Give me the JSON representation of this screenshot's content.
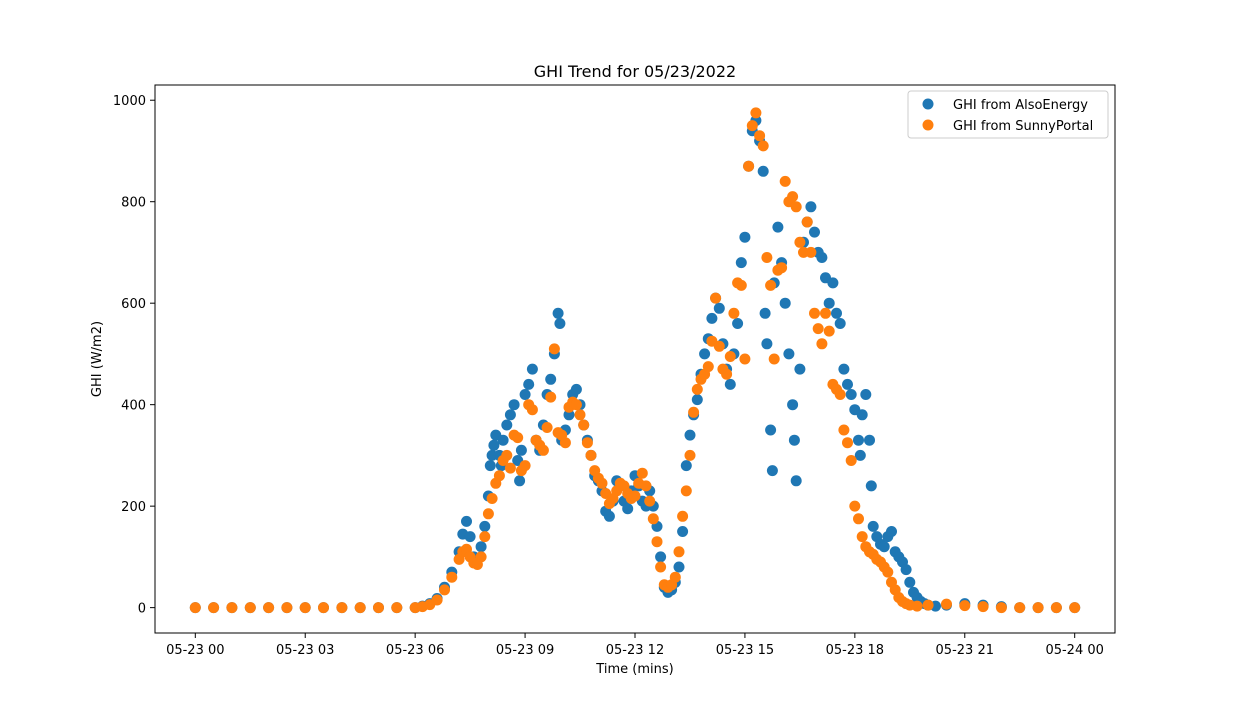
{
  "chart_data": {
    "type": "scatter",
    "title": "GHI Trend for 05/23/2022",
    "xlabel": "Time (mins)",
    "ylabel": "GHI (W/m2)",
    "x_unit": "hour of day",
    "xlim": [
      -1.1,
      25.1
    ],
    "ylim": [
      -50,
      1030
    ],
    "x_ticks": [
      0,
      3,
      6,
      9,
      12,
      15,
      18,
      21,
      24
    ],
    "x_tick_labels": [
      "05-23 00",
      "05-23 03",
      "05-23 06",
      "05-23 09",
      "05-23 12",
      "05-23 15",
      "05-23 18",
      "05-23 21",
      "05-24 00"
    ],
    "y_ticks": [
      0,
      200,
      400,
      600,
      800,
      1000
    ],
    "y_tick_labels": [
      "0",
      "200",
      "400",
      "600",
      "800",
      "1000"
    ],
    "legend_position": "top-right",
    "grid": false,
    "series": [
      {
        "name": "GHI from AlsoEnergy",
        "color": "#1f77b4",
        "points": [
          [
            0,
            0
          ],
          [
            0.5,
            0
          ],
          [
            1,
            0
          ],
          [
            1.5,
            0
          ],
          [
            2,
            0
          ],
          [
            2.5,
            0
          ],
          [
            3,
            0
          ],
          [
            3.5,
            0
          ],
          [
            4,
            0
          ],
          [
            4.5,
            0
          ],
          [
            5,
            0
          ],
          [
            5.5,
            0
          ],
          [
            6,
            0
          ],
          [
            6.2,
            3
          ],
          [
            6.4,
            8
          ],
          [
            6.6,
            18
          ],
          [
            6.8,
            40
          ],
          [
            7.0,
            70
          ],
          [
            7.2,
            110
          ],
          [
            7.3,
            145
          ],
          [
            7.4,
            170
          ],
          [
            7.5,
            140
          ],
          [
            7.6,
            100
          ],
          [
            7.7,
            95
          ],
          [
            7.8,
            120
          ],
          [
            7.9,
            160
          ],
          [
            8.0,
            220
          ],
          [
            8.05,
            280
          ],
          [
            8.1,
            300
          ],
          [
            8.15,
            320
          ],
          [
            8.2,
            340
          ],
          [
            8.3,
            300
          ],
          [
            8.35,
            280
          ],
          [
            8.4,
            330
          ],
          [
            8.5,
            360
          ],
          [
            8.6,
            380
          ],
          [
            8.7,
            400
          ],
          [
            8.8,
            290
          ],
          [
            8.85,
            250
          ],
          [
            8.9,
            310
          ],
          [
            9.0,
            420
          ],
          [
            9.1,
            440
          ],
          [
            9.2,
            470
          ],
          [
            9.3,
            330
          ],
          [
            9.4,
            310
          ],
          [
            9.5,
            360
          ],
          [
            9.6,
            420
          ],
          [
            9.7,
            450
          ],
          [
            9.8,
            500
          ],
          [
            9.9,
            580
          ],
          [
            9.95,
            560
          ],
          [
            10.0,
            330
          ],
          [
            10.1,
            350
          ],
          [
            10.2,
            380
          ],
          [
            10.3,
            420
          ],
          [
            10.4,
            430
          ],
          [
            10.5,
            400
          ],
          [
            10.6,
            360
          ],
          [
            10.7,
            330
          ],
          [
            10.8,
            300
          ],
          [
            10.9,
            260
          ],
          [
            11.0,
            250
          ],
          [
            11.1,
            230
          ],
          [
            11.2,
            190
          ],
          [
            11.3,
            180
          ],
          [
            11.4,
            210
          ],
          [
            11.5,
            250
          ],
          [
            11.6,
            240
          ],
          [
            11.7,
            210
          ],
          [
            11.8,
            195
          ],
          [
            11.9,
            230
          ],
          [
            12.0,
            260
          ],
          [
            12.1,
            240
          ],
          [
            12.2,
            210
          ],
          [
            12.3,
            200
          ],
          [
            12.4,
            230
          ],
          [
            12.5,
            200
          ],
          [
            12.6,
            160
          ],
          [
            12.7,
            100
          ],
          [
            12.8,
            40
          ],
          [
            12.9,
            30
          ],
          [
            13.0,
            35
          ],
          [
            13.1,
            50
          ],
          [
            13.2,
            80
          ],
          [
            13.3,
            150
          ],
          [
            13.4,
            280
          ],
          [
            13.5,
            340
          ],
          [
            13.6,
            380
          ],
          [
            13.7,
            410
          ],
          [
            13.8,
            460
          ],
          [
            13.9,
            500
          ],
          [
            14.0,
            530
          ],
          [
            14.1,
            570
          ],
          [
            14.2,
            610
          ],
          [
            14.3,
            590
          ],
          [
            14.4,
            520
          ],
          [
            14.5,
            470
          ],
          [
            14.6,
            440
          ],
          [
            14.7,
            500
          ],
          [
            14.8,
            560
          ],
          [
            14.9,
            680
          ],
          [
            15.0,
            730
          ],
          [
            15.1,
            870
          ],
          [
            15.2,
            940
          ],
          [
            15.3,
            960
          ],
          [
            15.4,
            920
          ],
          [
            15.5,
            860
          ],
          [
            15.55,
            580
          ],
          [
            15.6,
            520
          ],
          [
            15.7,
            350
          ],
          [
            15.75,
            270
          ],
          [
            15.8,
            640
          ],
          [
            15.9,
            750
          ],
          [
            16.0,
            680
          ],
          [
            16.1,
            600
          ],
          [
            16.2,
            500
          ],
          [
            16.3,
            400
          ],
          [
            16.35,
            330
          ],
          [
            16.4,
            250
          ],
          [
            16.5,
            470
          ],
          [
            16.6,
            720
          ],
          [
            16.7,
            760
          ],
          [
            16.8,
            790
          ],
          [
            16.9,
            740
          ],
          [
            17.0,
            700
          ],
          [
            17.1,
            690
          ],
          [
            17.2,
            650
          ],
          [
            17.3,
            600
          ],
          [
            17.4,
            640
          ],
          [
            17.5,
            580
          ],
          [
            17.6,
            560
          ],
          [
            17.7,
            470
          ],
          [
            17.8,
            440
          ],
          [
            17.9,
            420
          ],
          [
            18.0,
            390
          ],
          [
            18.1,
            330
          ],
          [
            18.15,
            300
          ],
          [
            18.2,
            380
          ],
          [
            18.3,
            420
          ],
          [
            18.4,
            330
          ],
          [
            18.45,
            240
          ],
          [
            18.5,
            160
          ],
          [
            18.6,
            140
          ],
          [
            18.7,
            125
          ],
          [
            18.8,
            120
          ],
          [
            18.9,
            140
          ],
          [
            19.0,
            150
          ],
          [
            19.1,
            110
          ],
          [
            19.2,
            100
          ],
          [
            19.3,
            90
          ],
          [
            19.4,
            75
          ],
          [
            19.5,
            50
          ],
          [
            19.6,
            30
          ],
          [
            19.7,
            20
          ],
          [
            19.8,
            12
          ],
          [
            19.9,
            8
          ],
          [
            20.0,
            5
          ],
          [
            20.2,
            3
          ],
          [
            20.5,
            5
          ],
          [
            21.0,
            8
          ],
          [
            21.5,
            5
          ],
          [
            22.0,
            2
          ],
          [
            22.5,
            0
          ],
          [
            23,
            0
          ],
          [
            23.5,
            0
          ],
          [
            24,
            0
          ]
        ]
      },
      {
        "name": "GHI from SunnyPortal",
        "color": "#ff7f0e",
        "points": [
          [
            0,
            0
          ],
          [
            0.5,
            0
          ],
          [
            1,
            0
          ],
          [
            1.5,
            0
          ],
          [
            2,
            0
          ],
          [
            2.5,
            0
          ],
          [
            3,
            0
          ],
          [
            3.5,
            0
          ],
          [
            4,
            0
          ],
          [
            4.5,
            0
          ],
          [
            5,
            0
          ],
          [
            5.5,
            0
          ],
          [
            6,
            0
          ],
          [
            6.2,
            2
          ],
          [
            6.4,
            6
          ],
          [
            6.6,
            15
          ],
          [
            6.8,
            35
          ],
          [
            7.0,
            60
          ],
          [
            7.2,
            95
          ],
          [
            7.3,
            110
          ],
          [
            7.4,
            115
          ],
          [
            7.5,
            100
          ],
          [
            7.6,
            88
          ],
          [
            7.7,
            85
          ],
          [
            7.8,
            100
          ],
          [
            7.9,
            140
          ],
          [
            8.0,
            185
          ],
          [
            8.1,
            215
          ],
          [
            8.2,
            245
          ],
          [
            8.3,
            260
          ],
          [
            8.4,
            290
          ],
          [
            8.5,
            300
          ],
          [
            8.6,
            275
          ],
          [
            8.7,
            340
          ],
          [
            8.8,
            335
          ],
          [
            8.9,
            270
          ],
          [
            9.0,
            280
          ],
          [
            9.1,
            400
          ],
          [
            9.2,
            390
          ],
          [
            9.3,
            330
          ],
          [
            9.4,
            320
          ],
          [
            9.5,
            310
          ],
          [
            9.6,
            355
          ],
          [
            9.7,
            415
          ],
          [
            9.8,
            510
          ],
          [
            9.9,
            345
          ],
          [
            10.0,
            340
          ],
          [
            10.1,
            325
          ],
          [
            10.2,
            395
          ],
          [
            10.3,
            405
          ],
          [
            10.4,
            400
          ],
          [
            10.5,
            380
          ],
          [
            10.6,
            360
          ],
          [
            10.7,
            325
          ],
          [
            10.8,
            300
          ],
          [
            10.9,
            270
          ],
          [
            11.0,
            255
          ],
          [
            11.1,
            245
          ],
          [
            11.2,
            225
          ],
          [
            11.3,
            205
          ],
          [
            11.4,
            215
          ],
          [
            11.5,
            230
          ],
          [
            11.6,
            245
          ],
          [
            11.7,
            240
          ],
          [
            11.8,
            225
          ],
          [
            11.9,
            215
          ],
          [
            12.0,
            220
          ],
          [
            12.1,
            245
          ],
          [
            12.2,
            265
          ],
          [
            12.3,
            240
          ],
          [
            12.4,
            210
          ],
          [
            12.5,
            175
          ],
          [
            12.6,
            130
          ],
          [
            12.7,
            80
          ],
          [
            12.8,
            45
          ],
          [
            12.9,
            40
          ],
          [
            13.0,
            45
          ],
          [
            13.1,
            60
          ],
          [
            13.2,
            110
          ],
          [
            13.3,
            180
          ],
          [
            13.4,
            230
          ],
          [
            13.5,
            300
          ],
          [
            13.6,
            385
          ],
          [
            13.7,
            430
          ],
          [
            13.8,
            450
          ],
          [
            13.9,
            460
          ],
          [
            14.0,
            475
          ],
          [
            14.1,
            525
          ],
          [
            14.2,
            610
          ],
          [
            14.3,
            515
          ],
          [
            14.4,
            470
          ],
          [
            14.5,
            460
          ],
          [
            14.6,
            495
          ],
          [
            14.7,
            580
          ],
          [
            14.8,
            640
          ],
          [
            14.9,
            635
          ],
          [
            15.0,
            490
          ],
          [
            15.1,
            870
          ],
          [
            15.2,
            950
          ],
          [
            15.3,
            975
          ],
          [
            15.4,
            930
          ],
          [
            15.5,
            910
          ],
          [
            15.6,
            690
          ],
          [
            15.7,
            635
          ],
          [
            15.8,
            490
          ],
          [
            15.9,
            665
          ],
          [
            16.0,
            670
          ],
          [
            16.1,
            840
          ],
          [
            16.2,
            800
          ],
          [
            16.3,
            810
          ],
          [
            16.4,
            790
          ],
          [
            16.5,
            720
          ],
          [
            16.6,
            700
          ],
          [
            16.7,
            760
          ],
          [
            16.8,
            700
          ],
          [
            16.9,
            580
          ],
          [
            17.0,
            550
          ],
          [
            17.1,
            520
          ],
          [
            17.2,
            580
          ],
          [
            17.3,
            545
          ],
          [
            17.4,
            440
          ],
          [
            17.5,
            430
          ],
          [
            17.6,
            420
          ],
          [
            17.7,
            350
          ],
          [
            17.8,
            325
          ],
          [
            17.9,
            290
          ],
          [
            18.0,
            200
          ],
          [
            18.1,
            175
          ],
          [
            18.2,
            140
          ],
          [
            18.3,
            120
          ],
          [
            18.4,
            110
          ],
          [
            18.5,
            105
          ],
          [
            18.6,
            95
          ],
          [
            18.7,
            90
          ],
          [
            18.8,
            80
          ],
          [
            18.9,
            70
          ],
          [
            19.0,
            50
          ],
          [
            19.1,
            35
          ],
          [
            19.2,
            20
          ],
          [
            19.3,
            12
          ],
          [
            19.4,
            8
          ],
          [
            19.5,
            5
          ],
          [
            19.7,
            3
          ],
          [
            20.0,
            5
          ],
          [
            20.5,
            7
          ],
          [
            21.0,
            4
          ],
          [
            21.5,
            2
          ],
          [
            22.0,
            0
          ],
          [
            22.5,
            0
          ],
          [
            23,
            0
          ],
          [
            23.5,
            0
          ],
          [
            24,
            0
          ]
        ]
      }
    ]
  }
}
